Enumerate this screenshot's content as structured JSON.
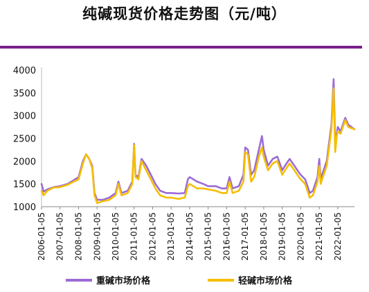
{
  "title": "纯碱现货价格走势图（元/吨）",
  "colors": {
    "accent_rule": "#7b1e8a",
    "heavy": "#9b6bd6",
    "light": "#f5be00"
  },
  "chart_data": {
    "type": "line",
    "title": "纯碱现货价格走势图（元/吨）",
    "xlabel": "",
    "ylabel": "",
    "ylim": [
      1000,
      4000
    ],
    "yticks": [
      1000,
      1500,
      2000,
      2500,
      3000,
      3500,
      4000
    ],
    "xticks": [
      "2006-01-05",
      "2007-01-05",
      "2008-01-05",
      "2009-01-05",
      "2010-01-05",
      "2011-01-05",
      "2012-01-05",
      "2013-01-05",
      "2014-01-05",
      "2015-01-05",
      "2016-01-05",
      "2017-01-05",
      "2018-01-05",
      "2019-01-05",
      "2020-01-05",
      "2021-01-05",
      "2022-01-05"
    ],
    "x_range": [
      "2006-01-05",
      "2022-11-30"
    ],
    "grid": false,
    "legend": "bottom",
    "series": [
      {
        "name": "重碱市场价格",
        "color": "#9b6bd6",
        "points": [
          [
            "2006-01-05",
            1500
          ],
          [
            "2006-02-15",
            1330
          ],
          [
            "2006-05-01",
            1380
          ],
          [
            "2006-09-01",
            1430
          ],
          [
            "2007-01-05",
            1450
          ],
          [
            "2007-06-01",
            1500
          ],
          [
            "2007-10-01",
            1580
          ],
          [
            "2008-01-05",
            1650
          ],
          [
            "2008-04-01",
            2000
          ],
          [
            "2008-06-01",
            2150
          ],
          [
            "2008-08-01",
            2050
          ],
          [
            "2008-10-01",
            1900
          ],
          [
            "2008-11-15",
            1300
          ],
          [
            "2009-01-05",
            1150
          ],
          [
            "2009-05-01",
            1150
          ],
          [
            "2009-09-01",
            1200
          ],
          [
            "2010-01-05",
            1300
          ],
          [
            "2010-03-01",
            1550
          ],
          [
            "2010-05-01",
            1300
          ],
          [
            "2010-09-01",
            1350
          ],
          [
            "2010-12-01",
            1550
          ],
          [
            "2011-01-05",
            2380
          ],
          [
            "2011-02-01",
            1700
          ],
          [
            "2011-04-01",
            1650
          ],
          [
            "2011-06-01",
            2050
          ],
          [
            "2011-09-01",
            1900
          ],
          [
            "2011-12-01",
            1700
          ],
          [
            "2012-03-01",
            1500
          ],
          [
            "2012-06-01",
            1350
          ],
          [
            "2012-10-01",
            1300
          ],
          [
            "2013-01-05",
            1300
          ],
          [
            "2013-06-01",
            1290
          ],
          [
            "2013-10-01",
            1300
          ],
          [
            "2013-12-01",
            1600
          ],
          [
            "2014-01-05",
            1650
          ],
          [
            "2014-06-01",
            1550
          ],
          [
            "2014-10-01",
            1500
          ],
          [
            "2015-01-05",
            1450
          ],
          [
            "2015-06-01",
            1450
          ],
          [
            "2015-10-01",
            1400
          ],
          [
            "2016-01-05",
            1400
          ],
          [
            "2016-03-01",
            1650
          ],
          [
            "2016-05-01",
            1400
          ],
          [
            "2016-09-01",
            1450
          ],
          [
            "2016-12-01",
            1700
          ],
          [
            "2017-01-05",
            2300
          ],
          [
            "2017-03-01",
            2250
          ],
          [
            "2017-05-01",
            1700
          ],
          [
            "2017-07-01",
            1800
          ],
          [
            "2017-10-01",
            2250
          ],
          [
            "2017-12-01",
            2550
          ],
          [
            "2018-01-05",
            2250
          ],
          [
            "2018-04-01",
            1900
          ],
          [
            "2018-07-01",
            2050
          ],
          [
            "2018-10-01",
            2100
          ],
          [
            "2019-01-05",
            1800
          ],
          [
            "2019-03-01",
            1900
          ],
          [
            "2019-06-01",
            2050
          ],
          [
            "2019-09-01",
            1900
          ],
          [
            "2019-12-01",
            1750
          ],
          [
            "2020-01-05",
            1700
          ],
          [
            "2020-04-01",
            1600
          ],
          [
            "2020-07-01",
            1300
          ],
          [
            "2020-09-01",
            1350
          ],
          [
            "2020-12-01",
            1650
          ],
          [
            "2021-01-05",
            2050
          ],
          [
            "2021-02-01",
            1600
          ],
          [
            "2021-03-01",
            1700
          ],
          [
            "2021-06-01",
            2000
          ],
          [
            "2021-09-01",
            2800
          ],
          [
            "2021-10-15",
            3800
          ],
          [
            "2021-11-15",
            2400
          ],
          [
            "2021-12-15",
            2600
          ],
          [
            "2022-01-05",
            2750
          ],
          [
            "2022-03-01",
            2650
          ],
          [
            "2022-06-01",
            2950
          ],
          [
            "2022-08-01",
            2800
          ],
          [
            "2022-11-30",
            2700
          ]
        ]
      },
      {
        "name": "轻碱市场价格",
        "color": "#f5be00",
        "points": [
          [
            "2006-01-05",
            1350
          ],
          [
            "2006-02-15",
            1250
          ],
          [
            "2006-05-01",
            1350
          ],
          [
            "2006-09-01",
            1420
          ],
          [
            "2007-01-05",
            1430
          ],
          [
            "2007-06-01",
            1480
          ],
          [
            "2007-10-01",
            1550
          ],
          [
            "2008-01-05",
            1600
          ],
          [
            "2008-04-01",
            1950
          ],
          [
            "2008-06-01",
            2150
          ],
          [
            "2008-08-01",
            2050
          ],
          [
            "2008-10-01",
            1850
          ],
          [
            "2008-11-15",
            1250
          ],
          [
            "2009-01-05",
            1080
          ],
          [
            "2009-05-01",
            1120
          ],
          [
            "2009-09-01",
            1150
          ],
          [
            "2010-01-05",
            1250
          ],
          [
            "2010-03-01",
            1500
          ],
          [
            "2010-05-01",
            1250
          ],
          [
            "2010-09-01",
            1300
          ],
          [
            "2010-12-01",
            1500
          ],
          [
            "2011-01-05",
            2350
          ],
          [
            "2011-02-01",
            1650
          ],
          [
            "2011-04-01",
            1600
          ],
          [
            "2011-06-01",
            2000
          ],
          [
            "2011-09-01",
            1800
          ],
          [
            "2011-12-01",
            1600
          ],
          [
            "2012-03-01",
            1400
          ],
          [
            "2012-06-01",
            1250
          ],
          [
            "2012-10-01",
            1200
          ],
          [
            "2013-01-05",
            1200
          ],
          [
            "2013-06-01",
            1170
          ],
          [
            "2013-10-01",
            1200
          ],
          [
            "2013-12-01",
            1450
          ],
          [
            "2014-01-05",
            1500
          ],
          [
            "2014-06-01",
            1400
          ],
          [
            "2014-10-01",
            1400
          ],
          [
            "2015-01-05",
            1380
          ],
          [
            "2015-06-01",
            1350
          ],
          [
            "2015-10-01",
            1300
          ],
          [
            "2016-01-05",
            1300
          ],
          [
            "2016-03-01",
            1550
          ],
          [
            "2016-05-01",
            1300
          ],
          [
            "2016-09-01",
            1350
          ],
          [
            "2016-12-01",
            1550
          ],
          [
            "2017-01-05",
            2200
          ],
          [
            "2017-03-01",
            2150
          ],
          [
            "2017-05-01",
            1550
          ],
          [
            "2017-07-01",
            1650
          ],
          [
            "2017-10-01",
            2100
          ],
          [
            "2017-12-01",
            2300
          ],
          [
            "2018-01-05",
            2100
          ],
          [
            "2018-04-01",
            1800
          ],
          [
            "2018-07-01",
            1950
          ],
          [
            "2018-10-01",
            2000
          ],
          [
            "2019-01-05",
            1700
          ],
          [
            "2019-03-01",
            1800
          ],
          [
            "2019-06-01",
            1950
          ],
          [
            "2019-09-01",
            1800
          ],
          [
            "2019-12-01",
            1650
          ],
          [
            "2020-01-05",
            1600
          ],
          [
            "2020-04-01",
            1500
          ],
          [
            "2020-07-01",
            1200
          ],
          [
            "2020-09-01",
            1250
          ],
          [
            "2020-12-01",
            1550
          ],
          [
            "2021-01-05",
            1900
          ],
          [
            "2021-02-01",
            1500
          ],
          [
            "2021-03-01",
            1600
          ],
          [
            "2021-06-01",
            1900
          ],
          [
            "2021-09-01",
            2700
          ],
          [
            "2021-10-15",
            3600
          ],
          [
            "2021-11-15",
            2200
          ],
          [
            "2021-12-15",
            2550
          ],
          [
            "2022-01-05",
            2650
          ],
          [
            "2022-03-01",
            2600
          ],
          [
            "2022-06-01",
            2900
          ],
          [
            "2022-08-01",
            2750
          ],
          [
            "2022-11-30",
            2700
          ]
        ]
      }
    ]
  }
}
